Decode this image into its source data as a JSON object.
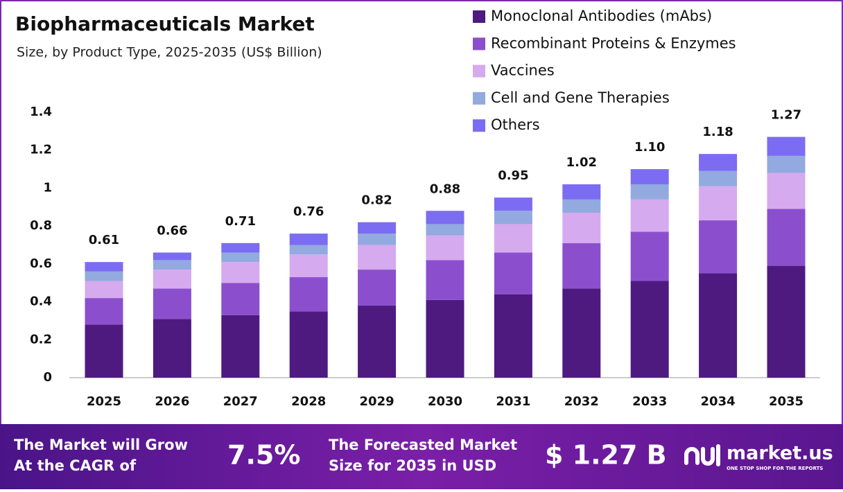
{
  "chart_data": {
    "type": "stacked_bar",
    "title": "Biopharmaceuticals Market",
    "subtitle": "Size, by Product Type, 2025-2035 (US$ Billion)",
    "categories": [
      "2025",
      "2026",
      "2027",
      "2028",
      "2029",
      "2030",
      "2031",
      "2032",
      "2033",
      "2034",
      "2035"
    ],
    "series": [
      {
        "name": "Monoclonal Antibodies (mAbs)",
        "color": "#4e1a80",
        "values": [
          0.28,
          0.31,
          0.33,
          0.35,
          0.38,
          0.41,
          0.44,
          0.47,
          0.51,
          0.55,
          0.59
        ]
      },
      {
        "name": "Recombinant Proteins & Enzymes",
        "color": "#8b4fce",
        "values": [
          0.14,
          0.16,
          0.17,
          0.18,
          0.19,
          0.21,
          0.22,
          0.24,
          0.26,
          0.28,
          0.3
        ]
      },
      {
        "name": "Vaccines",
        "color": "#d6aaee",
        "values": [
          0.09,
          0.1,
          0.11,
          0.12,
          0.13,
          0.13,
          0.15,
          0.16,
          0.17,
          0.18,
          0.19
        ]
      },
      {
        "name": "Cell and Gene Therapies",
        "color": "#92aadf",
        "values": [
          0.05,
          0.05,
          0.05,
          0.05,
          0.06,
          0.06,
          0.07,
          0.07,
          0.08,
          0.08,
          0.09
        ]
      },
      {
        "name": "Others",
        "color": "#7b6cf2",
        "values": [
          0.05,
          0.04,
          0.05,
          0.06,
          0.06,
          0.07,
          0.07,
          0.08,
          0.08,
          0.09,
          0.1
        ]
      }
    ],
    "totals": [
      0.61,
      0.66,
      0.71,
      0.76,
      0.82,
      0.88,
      0.95,
      1.02,
      1.1,
      1.18,
      1.27
    ],
    "total_labels": [
      "0.61",
      "0.66",
      "0.71",
      "0.76",
      "0.82",
      "0.88",
      "0.95",
      "1.02",
      "1.10",
      "1.18",
      "1.27"
    ],
    "ylim": [
      0,
      1.4
    ],
    "yticks": [
      0,
      0.2,
      0.4,
      0.6,
      0.8,
      1,
      1.2,
      1.4
    ],
    "grid": false
  },
  "footer": {
    "cagr_text": [
      "The Market will Grow",
      "At the CAGR of"
    ],
    "cagr": "7.5%",
    "forecast_text": [
      "The Forecasted Market",
      "Size for 2035 in USD"
    ],
    "forecast": "$ 1.27 B",
    "brand": "market.us",
    "tagline": "ONE STOP SHOP FOR THE REPORTS"
  }
}
